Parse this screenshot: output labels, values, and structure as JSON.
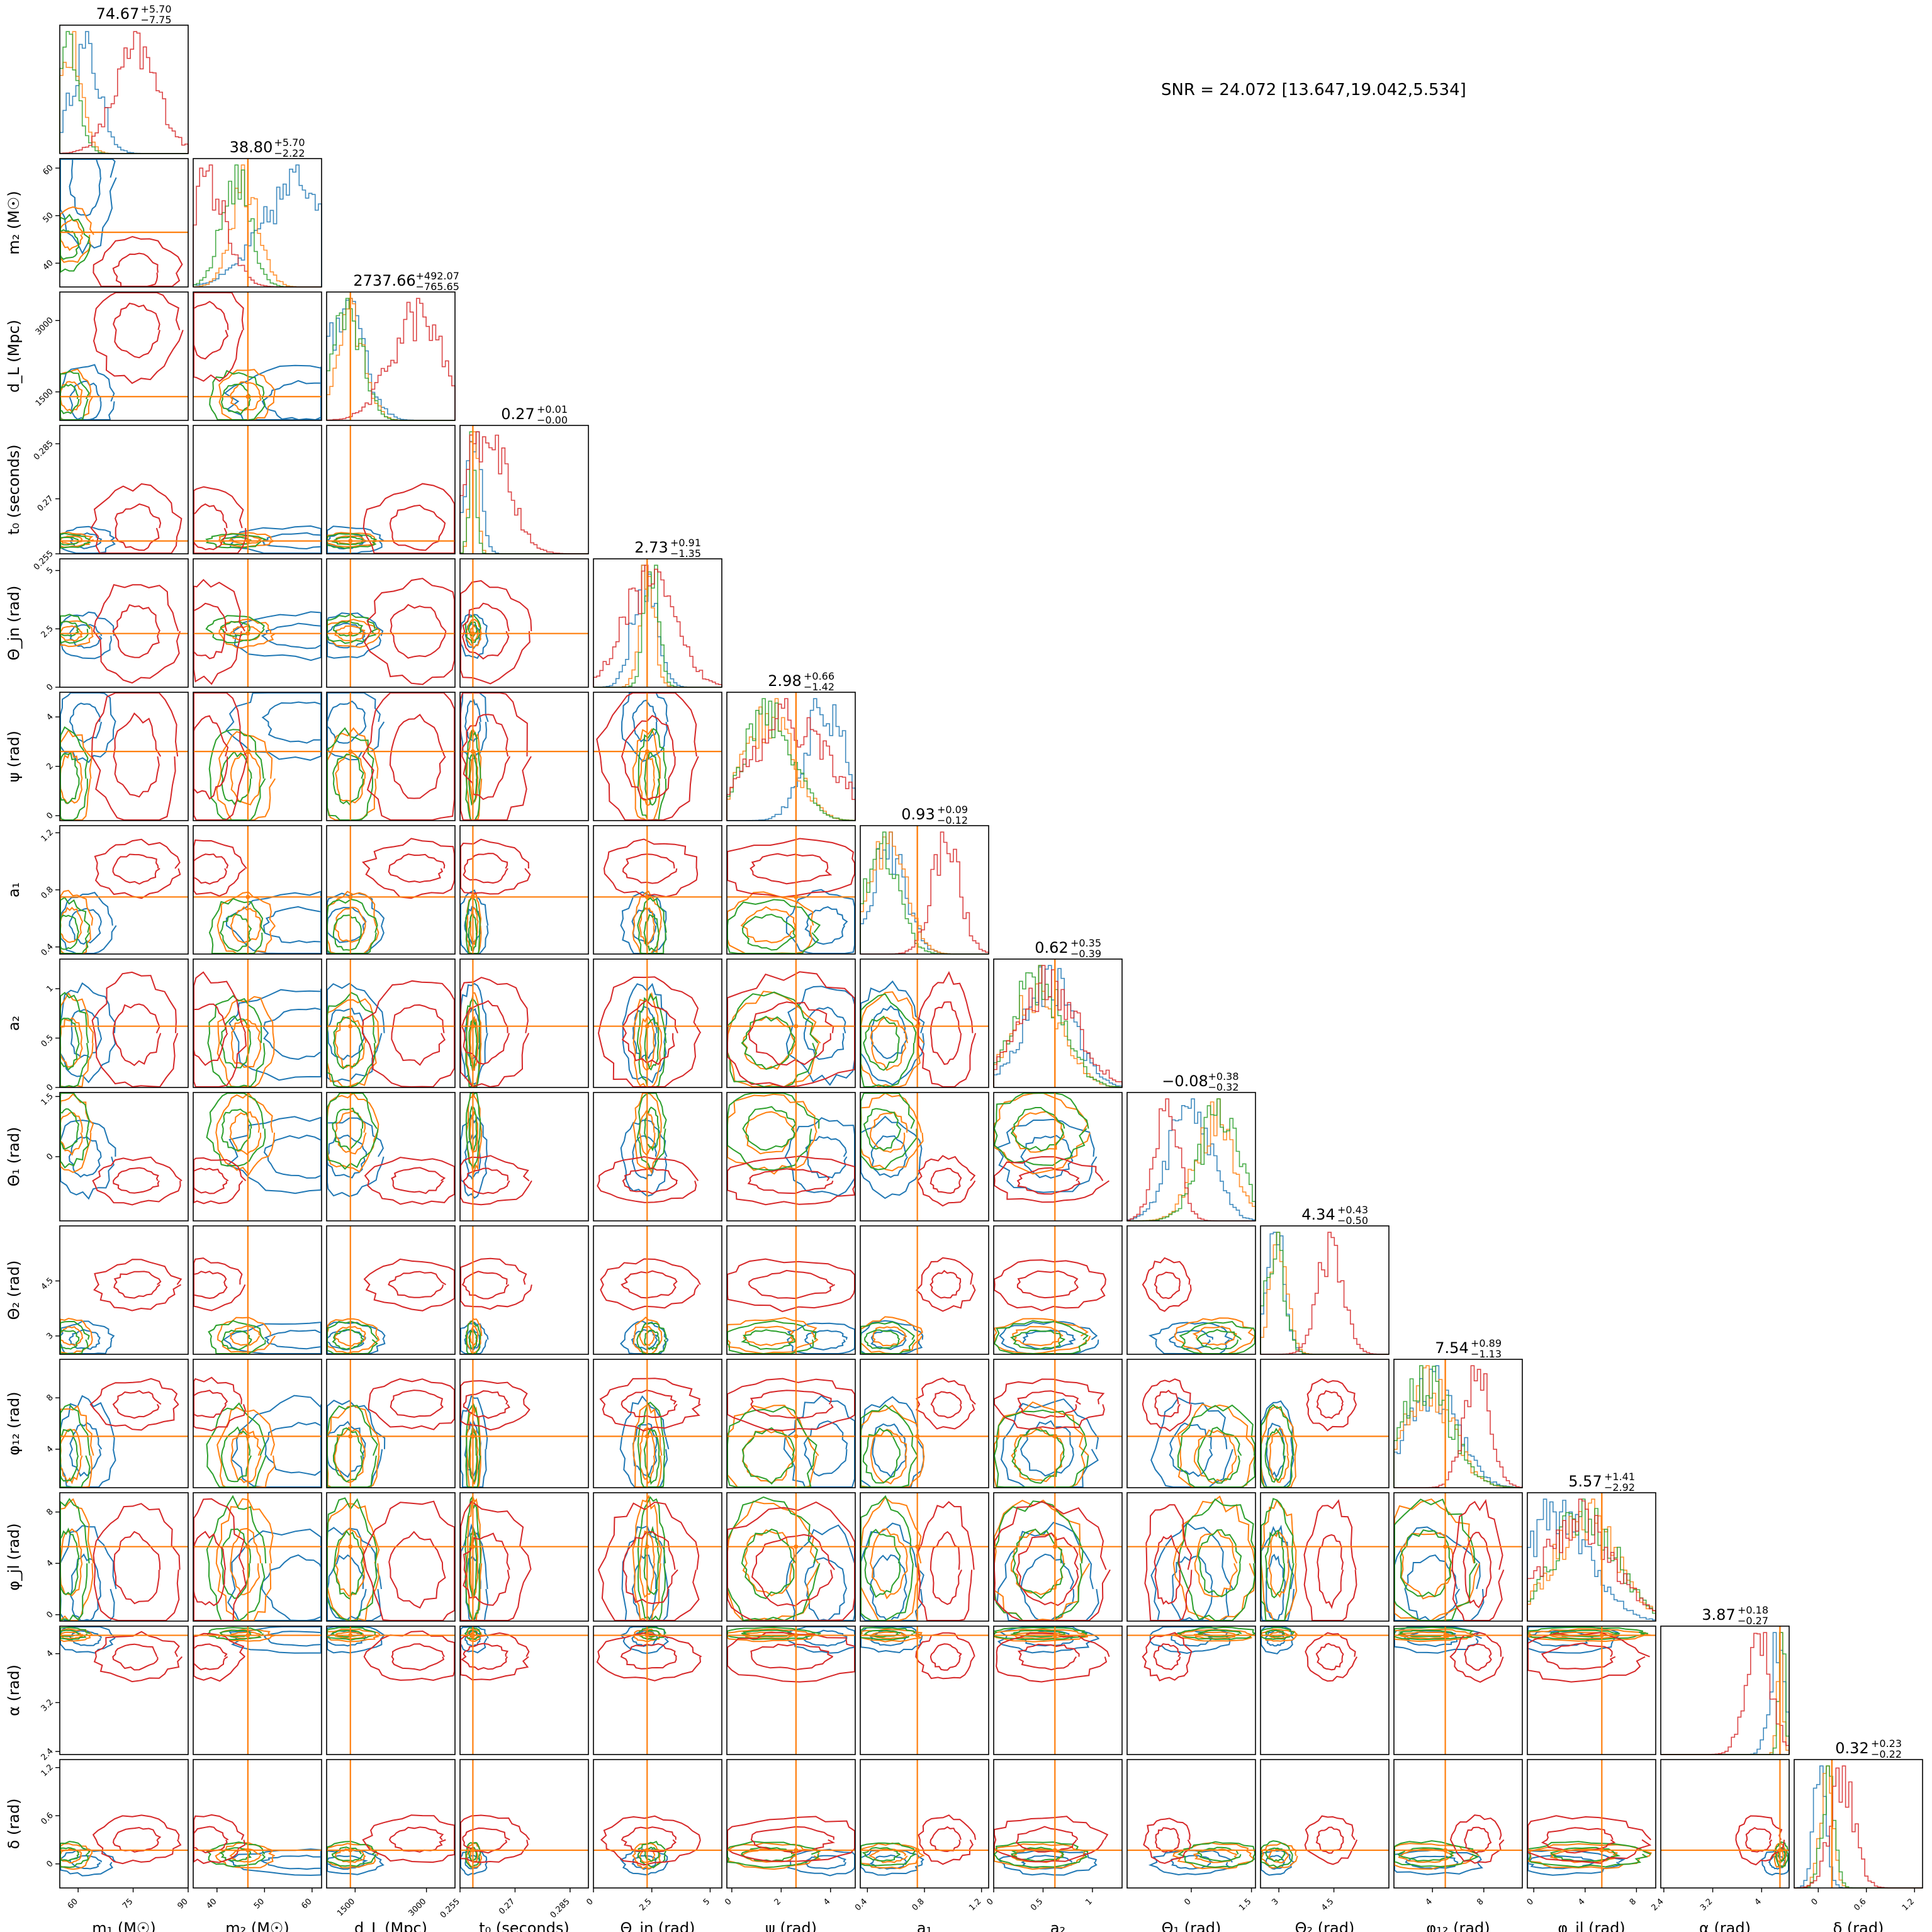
{
  "snr_text": "SNR = 24.072 [13.647,19.042,5.534]",
  "chart_data": {
    "type": "corner",
    "title": "",
    "colors": {
      "run_blue": "#1f77b4",
      "run_orange": "#ff7f0e",
      "run_green": "#2ca02c",
      "run_red": "#d62728",
      "truth": "#ff7f0e"
    },
    "parameters": [
      {
        "key": "m1",
        "label": "m₁ (M☉)",
        "range": [
          55,
          90
        ],
        "ticks": [
          60,
          75,
          90
        ],
        "truth": null,
        "summary": {
          "median": "74.67",
          "plus": "+5.70",
          "minus": "−7.75"
        }
      },
      {
        "key": "m2",
        "label": "m₂ (M☉)",
        "range": [
          35,
          62
        ],
        "ticks": [
          40,
          50,
          60
        ],
        "truth": 46.5,
        "summary": {
          "median": "38.80",
          "plus": "+5.70",
          "minus": "−2.22"
        }
      },
      {
        "key": "dL",
        "label": "d_L (Mpc)",
        "range": [
          900,
          3600
        ],
        "ticks": [
          1500,
          3000
        ],
        "truth": 1400,
        "summary": {
          "median": "2737.66",
          "plus": "+492.07",
          "minus": "−765.65"
        }
      },
      {
        "key": "t0",
        "label": "t₀ (seconds)",
        "range": [
          0.255,
          0.29
        ],
        "ticks": [
          0.255,
          0.27,
          0.285
        ],
        "truth": 0.2585,
        "summary": {
          "median": "0.27",
          "plus": "+0.01",
          "minus": "−0.00"
        }
      },
      {
        "key": "theta_jn",
        "label": "Θ_jn (rad)",
        "range": [
          0,
          5.5
        ],
        "ticks": [
          0.0,
          2.5,
          5.0
        ],
        "truth": 2.3,
        "summary": {
          "median": "2.73",
          "plus": "+0.91",
          "minus": "−1.35"
        }
      },
      {
        "key": "psi",
        "label": "ψ (rad)",
        "range": [
          -0.2,
          5
        ],
        "ticks": [
          0,
          2,
          4
        ],
        "truth": 2.6,
        "summary": {
          "median": "2.98",
          "plus": "+0.66",
          "minus": "−1.42"
        }
      },
      {
        "key": "a1",
        "label": "a₁",
        "range": [
          0.35,
          1.25
        ],
        "ticks": [
          0.4,
          0.8,
          1.2
        ],
        "truth": 0.75,
        "summary": {
          "median": "0.93",
          "plus": "+0.09",
          "minus": "−0.12"
        }
      },
      {
        "key": "a2",
        "label": "a₂",
        "range": [
          0,
          1.3
        ],
        "ticks": [
          0.0,
          0.5,
          1.0
        ],
        "truth": 0.62,
        "summary": {
          "median": "0.62",
          "plus": "+0.35",
          "minus": "−0.39"
        }
      },
      {
        "key": "theta1",
        "label": "Θ₁ (rad)",
        "range": [
          -1.6,
          1.6
        ],
        "ticks": [
          0.0,
          1.5
        ],
        "truth": null,
        "summary": {
          "median": "−0.08",
          "plus": "+0.38",
          "minus": "−0.32"
        }
      },
      {
        "key": "theta2",
        "label": "Θ₂ (rad)",
        "range": [
          2.5,
          6
        ],
        "ticks": [
          3.0,
          4.5
        ],
        "truth": null,
        "summary": {
          "median": "4.34",
          "plus": "+0.43",
          "minus": "−0.50"
        }
      },
      {
        "key": "phi12",
        "label": "φ₁₂ (rad)",
        "range": [
          1,
          11
        ],
        "ticks": [
          4,
          8
        ],
        "truth": 5,
        "summary": {
          "median": "7.54",
          "plus": "+0.89",
          "minus": "−1.13"
        }
      },
      {
        "key": "phi_jl",
        "label": "φ_jl (rad)",
        "range": [
          -0.5,
          9.5
        ],
        "ticks": [
          0,
          4,
          8
        ],
        "truth": 5.3,
        "summary": {
          "median": "5.57",
          "plus": "+1.41",
          "minus": "−2.92"
        }
      },
      {
        "key": "alpha",
        "label": "α (rad)",
        "range": [
          2.35,
          4.45
        ],
        "ticks": [
          2.4,
          3.2,
          4.0
        ],
        "truth": 4.3,
        "summary": {
          "median": "3.87",
          "plus": "+0.18",
          "minus": "−0.27"
        }
      },
      {
        "key": "delta",
        "label": "δ (rad)",
        "range": [
          -0.3,
          1.3
        ],
        "ticks": [
          0.0,
          0.6,
          1.2
        ],
        "truth": 0.17,
        "summary": {
          "median": "0.32",
          "plus": "+0.23",
          "minus": "−0.22"
        }
      }
    ],
    "series_peaks": {
      "run_blue": [
        62,
        58,
        1300,
        0.2585,
        2.2,
        3.8,
        0.55,
        0.55,
        0.0,
        2.9,
        4,
        2,
        4.25,
        0.02
      ],
      "run_orange": [
        58,
        46,
        1400,
        0.2588,
        2.3,
        1.5,
        0.55,
        0.45,
        0.6,
        3.0,
        3.5,
        4,
        4.3,
        0.1
      ],
      "run_green": [
        57,
        44,
        1350,
        0.2585,
        2.5,
        1.5,
        0.5,
        0.45,
        0.7,
        2.9,
        3.5,
        4,
        4.33,
        0.12
      ],
      "run_red": [
        76,
        38,
        2800,
        0.262,
        2.4,
        2.4,
        0.95,
        0.55,
        -0.6,
        4.4,
        7.5,
        3.5,
        3.95,
        0.3
      ]
    },
    "series_widths": {
      "run_blue": [
        4,
        8,
        400,
        0.002,
        0.5,
        0.8,
        0.12,
        0.25,
        0.5,
        0.25,
        2.0,
        2.5,
        0.12,
        0.08
      ],
      "run_orange": [
        3,
        3,
        300,
        0.001,
        0.3,
        1.0,
        0.12,
        0.25,
        0.5,
        0.25,
        2.0,
        2.5,
        0.05,
        0.08
      ],
      "run_green": [
        3,
        3,
        300,
        0.001,
        0.3,
        1.0,
        0.12,
        0.25,
        0.5,
        0.25,
        2.0,
        2.5,
        0.05,
        0.08
      ],
      "run_red": [
        6,
        4,
        550,
        0.006,
        1.1,
        1.6,
        0.1,
        0.3,
        0.3,
        0.35,
        1.0,
        2.7,
        0.2,
        0.15
      ]
    }
  }
}
